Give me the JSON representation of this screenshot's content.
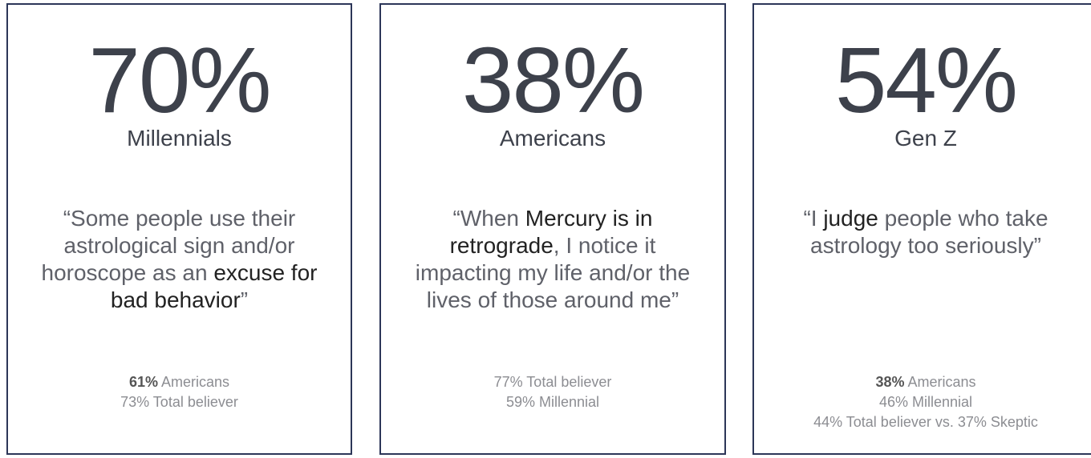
{
  "cards": [
    {
      "stat": "70%",
      "group": "Millennials",
      "quote": [
        {
          "text": "“Some people use their astrological sign and/or horoscope as an "
        },
        {
          "text": "excuse for bad behavior",
          "bold": true
        },
        {
          "text": "”"
        }
      ],
      "notes": [
        [
          {
            "text": "61%",
            "bold": true
          },
          {
            "text": " Americans"
          }
        ],
        [
          {
            "text": "73% Total believer"
          }
        ]
      ]
    },
    {
      "stat": "38%",
      "group": "Americans",
      "quote": [
        {
          "text": "“When "
        },
        {
          "text": "Mercury is in retrograde",
          "bold": true
        },
        {
          "text": ", I notice it impacting my life and/or the lives of those around me”"
        }
      ],
      "notes": [
        [
          {
            "text": "77% Total believer"
          }
        ],
        [
          {
            "text": "59% Millennial"
          }
        ]
      ]
    },
    {
      "stat": "54%",
      "group": "Gen Z",
      "quote": [
        {
          "text": "“I "
        },
        {
          "text": "judge",
          "bold": true
        },
        {
          "text": " people who take astrology too seriously”"
        }
      ],
      "notes": [
        [
          {
            "text": "38%",
            "bold": true
          },
          {
            "text": " Americans"
          }
        ],
        [
          {
            "text": "46% Millennial"
          }
        ],
        [
          {
            "text": "44% Total believer vs. 37% Skeptic"
          }
        ]
      ]
    }
  ]
}
